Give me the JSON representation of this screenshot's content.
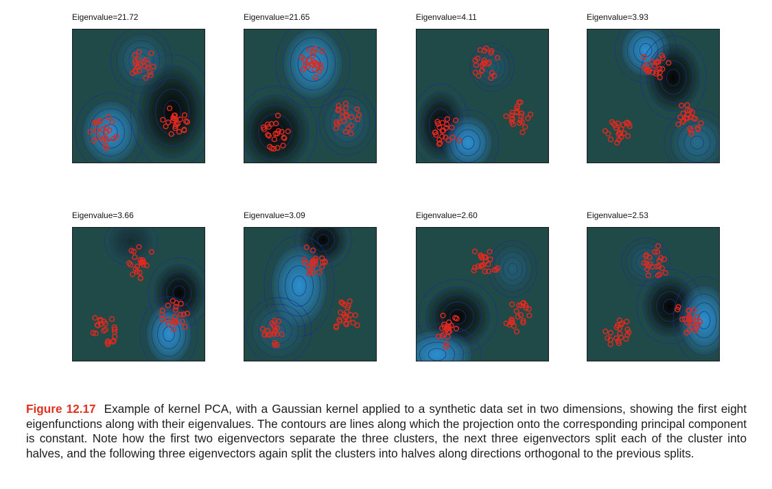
{
  "figure": {
    "panels": [
      {
        "title": "Eigenvalue=21.72"
      },
      {
        "title": "Eigenvalue=21.65"
      },
      {
        "title": "Eigenvalue=4.11"
      },
      {
        "title": "Eigenvalue=3.93"
      },
      {
        "title": "Eigenvalue=3.66"
      },
      {
        "title": "Eigenvalue=3.09"
      },
      {
        "title": "Eigenvalue=2.60"
      },
      {
        "title": "Eigenvalue=2.53"
      }
    ],
    "colors": {
      "background": "#1f4a48",
      "dark_extreme": "#050505",
      "light_extreme": "#2b8fd0",
      "contour": "#1d2f8c",
      "point": "#e0291f"
    }
  },
  "caption": {
    "label": "Figure 12.17",
    "text": "Example of kernel PCA, with a Gaussian kernel applied to a synthetic data set in two dimensions, showing the first eight eigenfunctions along with their eigenvalues. The contours are lines along which the projection onto the corresponding principal component is constant. Note how the first two eigenvectors separate the three clusters, the next three eigenvectors split each of the cluster into halves, and the following three eigenvectors again split the clusters into halves along directions orthogonal to the previous splits."
  }
}
